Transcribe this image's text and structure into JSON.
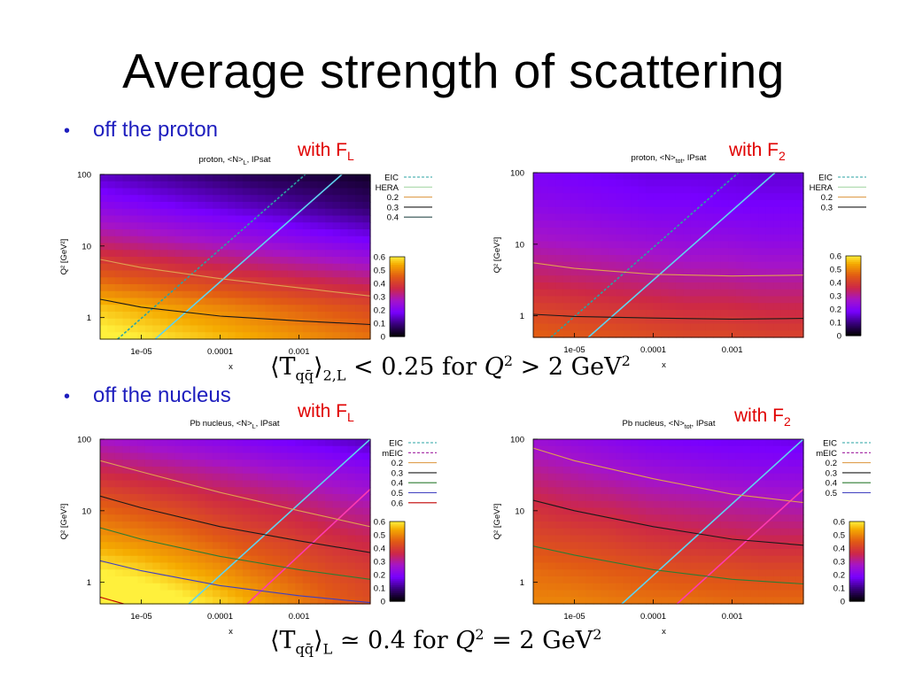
{
  "slide": {
    "title": "Average strength of scattering",
    "bullets": [
      {
        "label": "off the proton"
      },
      {
        "label": "off the nucleus"
      }
    ],
    "formulas": [
      {
        "T": "⟨T",
        "sub1": "qq̄",
        "close": "⟩",
        "sub2": "2,L",
        "rel": " < 0.25 for ",
        "Q": "Q",
        "exp": "2",
        "rhs": " > 2 GeV",
        "exp2": "2"
      },
      {
        "T": "⟨T",
        "sub1": "qq̄",
        "close": "⟩",
        "sub2": "L",
        "rel": " ≃ 0.4 for ",
        "Q": "Q",
        "exp": "2",
        "rhs": " = 2 GeV",
        "exp2": "2"
      }
    ],
    "with_labels": [
      {
        "text": "with F",
        "sub": "L"
      },
      {
        "text": "with F",
        "sub": "2"
      },
      {
        "text": "with F",
        "sub": "L"
      },
      {
        "text": "with F",
        "sub": "2"
      }
    ]
  },
  "chart_data": [
    {
      "type": "heatmap",
      "title": "proton, <N>L, IPsat",
      "title_base": "proton, <N>",
      "title_sub": "L",
      "title_tail": ", IPsat",
      "xlabel": "x",
      "ylabel": "Q² [GeV²]",
      "x_scale": "log",
      "y_scale": "log",
      "xlim": [
        3e-06,
        0.008
      ],
      "ylim": [
        0.5,
        100
      ],
      "xticks": [
        "1e-05",
        "0.0001",
        "0.001"
      ],
      "yticks": [
        "1",
        "10",
        "100"
      ],
      "colorbar_ticks": [
        "0",
        "0.1",
        "0.2",
        "0.3",
        "0.4",
        "0.5",
        "0.6"
      ],
      "colorbar_range": [
        0,
        0.6
      ],
      "grid": [
        [
          0.62,
          0.6,
          0.58,
          0.56,
          0.54,
          0.52,
          0.5,
          0.48
        ],
        [
          0.56,
          0.54,
          0.52,
          0.5,
          0.48,
          0.46,
          0.44,
          0.42
        ],
        [
          0.44,
          0.42,
          0.4,
          0.38,
          0.36,
          0.34,
          0.32,
          0.3
        ],
        [
          0.32,
          0.3,
          0.28,
          0.26,
          0.24,
          0.22,
          0.2,
          0.18
        ],
        [
          0.22,
          0.2,
          0.18,
          0.16,
          0.14,
          0.12,
          0.1,
          0.08
        ],
        [
          0.14,
          0.12,
          0.1,
          0.08,
          0.06,
          0.05,
          0.04,
          0.03
        ]
      ],
      "legend": [
        {
          "name": "EIC",
          "color": "#2aa3a3",
          "dash": true
        },
        {
          "name": "HERA",
          "color": "#a8d8a8",
          "dash": false
        },
        {
          "name": "0.2",
          "color": "#e0a050",
          "dash": false
        },
        {
          "name": "0.3",
          "color": "#1a1a1a",
          "dash": false
        },
        {
          "name": "0.4",
          "color": "#2f4f4f",
          "dash": false
        }
      ],
      "lines": [
        {
          "kind": "kin",
          "color": "#2aa3a3",
          "dash": true,
          "points": [
            [
              5e-06,
              0.5
            ],
            [
              0.0012,
              100
            ]
          ]
        },
        {
          "kind": "kin",
          "color": "#5fd3ef",
          "dash": false,
          "points": [
            [
              1.5e-05,
              0.5
            ],
            [
              0.0035,
              100
            ]
          ]
        },
        {
          "kind": "contour",
          "color": "#e0a050",
          "dash": false,
          "points": [
            [
              3e-06,
              6.5
            ],
            [
              1e-05,
              5.0
            ],
            [
              0.0001,
              3.5
            ],
            [
              0.001,
              2.6
            ],
            [
              0.008,
              2.0
            ]
          ]
        },
        {
          "kind": "contour",
          "color": "#1a1a1a",
          "dash": false,
          "points": [
            [
              3e-06,
              1.8
            ],
            [
              1e-05,
              1.4
            ],
            [
              0.0001,
              1.05
            ],
            [
              0.001,
              0.9
            ],
            [
              0.008,
              0.8
            ]
          ]
        }
      ]
    },
    {
      "type": "heatmap",
      "title": "proton, <N>tot, IPsat",
      "title_base": "proton, <N>",
      "title_sub": "tot",
      "title_tail": ", IPsat",
      "xlabel": "x",
      "ylabel": "Q² [GeV²]",
      "x_scale": "log",
      "y_scale": "log",
      "xlim": [
        3e-06,
        0.008
      ],
      "ylim": [
        0.5,
        100
      ],
      "xticks": [
        "1e-05",
        "0.0001",
        "0.001"
      ],
      "yticks": [
        "1",
        "10",
        "100"
      ],
      "colorbar_ticks": [
        "0",
        "0.1",
        "0.2",
        "0.3",
        "0.4",
        "0.5",
        "0.6"
      ],
      "colorbar_range": [
        0,
        0.6
      ],
      "grid": [
        [
          0.46,
          0.45,
          0.44,
          0.43,
          0.42,
          0.42,
          0.41,
          0.41
        ],
        [
          0.4,
          0.39,
          0.38,
          0.37,
          0.36,
          0.36,
          0.35,
          0.35
        ],
        [
          0.33,
          0.32,
          0.31,
          0.3,
          0.29,
          0.29,
          0.28,
          0.28
        ],
        [
          0.27,
          0.26,
          0.25,
          0.24,
          0.23,
          0.23,
          0.22,
          0.22
        ],
        [
          0.22,
          0.21,
          0.2,
          0.19,
          0.19,
          0.18,
          0.18,
          0.18
        ],
        [
          0.19,
          0.18,
          0.17,
          0.16,
          0.16,
          0.16,
          0.15,
          0.15
        ]
      ],
      "legend": [
        {
          "name": "EIC",
          "color": "#2aa3a3",
          "dash": true
        },
        {
          "name": "HERA",
          "color": "#a8d8a8",
          "dash": false
        },
        {
          "name": "0.2",
          "color": "#e0a050",
          "dash": false
        },
        {
          "name": "0.3",
          "color": "#1a1a1a",
          "dash": false
        }
      ],
      "lines": [
        {
          "kind": "kin",
          "color": "#2aa3a3",
          "dash": true,
          "points": [
            [
              5e-06,
              0.5
            ],
            [
              0.0012,
              100
            ]
          ]
        },
        {
          "kind": "kin",
          "color": "#5fd3ef",
          "dash": false,
          "points": [
            [
              1.5e-05,
              0.5
            ],
            [
              0.0035,
              100
            ]
          ]
        },
        {
          "kind": "contour",
          "color": "#e0a050",
          "dash": false,
          "points": [
            [
              3e-06,
              5.5
            ],
            [
              1e-05,
              4.6
            ],
            [
              0.0001,
              3.8
            ],
            [
              0.001,
              3.6
            ],
            [
              0.008,
              3.7
            ]
          ]
        },
        {
          "kind": "contour",
          "color": "#1a1a1a",
          "dash": false,
          "points": [
            [
              3e-06,
              1.05
            ],
            [
              1e-05,
              0.98
            ],
            [
              0.0001,
              0.93
            ],
            [
              0.001,
              0.9
            ],
            [
              0.008,
              0.92
            ]
          ]
        }
      ]
    },
    {
      "type": "heatmap",
      "title": "Pb nucleus, <N>L, IPsat",
      "title_base": "Pb nucleus, <N>",
      "title_sub": "L",
      "title_tail": ", IPsat",
      "xlabel": "x",
      "ylabel": "Q² [GeV²]",
      "x_scale": "log",
      "y_scale": "log",
      "xlim": [
        3e-06,
        0.008
      ],
      "ylim": [
        0.5,
        100
      ],
      "xticks": [
        "1e-05",
        "0.0001",
        "0.001"
      ],
      "yticks": [
        "1",
        "10",
        "100"
      ],
      "colorbar_ticks": [
        "0",
        "0.1",
        "0.2",
        "0.3",
        "0.4",
        "0.5",
        "0.6"
      ],
      "colorbar_range": [
        0,
        0.6
      ],
      "grid": [
        [
          0.66,
          0.65,
          0.62,
          0.58,
          0.54,
          0.5,
          0.46,
          0.43
        ],
        [
          0.6,
          0.58,
          0.55,
          0.52,
          0.48,
          0.45,
          0.42,
          0.4
        ],
        [
          0.52,
          0.5,
          0.48,
          0.45,
          0.42,
          0.4,
          0.37,
          0.35
        ],
        [
          0.45,
          0.43,
          0.41,
          0.38,
          0.36,
          0.34,
          0.31,
          0.29
        ],
        [
          0.36,
          0.34,
          0.32,
          0.3,
          0.28,
          0.26,
          0.24,
          0.22
        ],
        [
          0.27,
          0.25,
          0.23,
          0.21,
          0.19,
          0.17,
          0.15,
          0.13
        ]
      ],
      "legend": [
        {
          "name": "EIC",
          "color": "#2aa3a3",
          "dash": true
        },
        {
          "name": "mEIC",
          "color": "#a020a0",
          "dash": true
        },
        {
          "name": "0.2",
          "color": "#e0a050",
          "dash": false
        },
        {
          "name": "0.3",
          "color": "#1a1a1a",
          "dash": false
        },
        {
          "name": "0.4",
          "color": "#2e7d32",
          "dash": false
        },
        {
          "name": "0.5",
          "color": "#4040c0",
          "dash": false
        },
        {
          "name": "0.6",
          "color": "#c00000",
          "dash": false
        }
      ],
      "lines": [
        {
          "kind": "kin",
          "color": "#5fd3ef",
          "dash": false,
          "points": [
            [
              4e-05,
              0.5
            ],
            [
              0.008,
              100
            ]
          ]
        },
        {
          "kind": "kin",
          "color": "#ff3ab0",
          "dash": false,
          "points": [
            [
              0.00022,
              0.5
            ],
            [
              0.008,
              20
            ]
          ]
        },
        {
          "kind": "contour",
          "color": "#e0a050",
          "dash": false,
          "points": [
            [
              3e-06,
              50
            ],
            [
              1e-05,
              35
            ],
            [
              0.0001,
              18
            ],
            [
              0.001,
              10
            ],
            [
              0.008,
              6
            ]
          ]
        },
        {
          "kind": "contour",
          "color": "#1a1a1a",
          "dash": false,
          "points": [
            [
              3e-06,
              16
            ],
            [
              1e-05,
              11
            ],
            [
              0.0001,
              6
            ],
            [
              0.001,
              3.8
            ],
            [
              0.008,
              2.6
            ]
          ]
        },
        {
          "kind": "contour",
          "color": "#2e7d32",
          "dash": false,
          "points": [
            [
              3e-06,
              5.8
            ],
            [
              1e-05,
              4.0
            ],
            [
              0.0001,
              2.3
            ],
            [
              0.001,
              1.5
            ],
            [
              0.008,
              1.1
            ]
          ]
        },
        {
          "kind": "contour",
          "color": "#4040c0",
          "dash": false,
          "points": [
            [
              3e-06,
              2.0
            ],
            [
              1e-05,
              1.45
            ],
            [
              0.0001,
              0.9
            ],
            [
              0.001,
              0.65
            ],
            [
              0.008,
              0.52
            ]
          ]
        },
        {
          "kind": "contour",
          "color": "#c00000",
          "dash": false,
          "points": [
            [
              3e-06,
              0.62
            ],
            [
              6e-06,
              0.5
            ]
          ]
        }
      ]
    },
    {
      "type": "heatmap",
      "title": "Pb nucleus, <N>tot, IPsat",
      "title_base": "Pb nucleus, <N>",
      "title_sub": "tot",
      "title_tail": ", IPsat",
      "xlabel": "x",
      "ylabel": "Q² [GeV²]",
      "x_scale": "log",
      "y_scale": "log",
      "xlim": [
        3e-06,
        0.008
      ],
      "ylim": [
        0.5,
        100
      ],
      "xticks": [
        "1e-05",
        "0.0001",
        "0.001"
      ],
      "yticks": [
        "1",
        "10",
        "100"
      ],
      "colorbar_ticks": [
        "0",
        "0.1",
        "0.2",
        "0.3",
        "0.4",
        "0.5",
        "0.6"
      ],
      "colorbar_range": [
        0,
        0.6
      ],
      "grid": [
        [
          0.5,
          0.5,
          0.49,
          0.48,
          0.48,
          0.47,
          0.47,
          0.47
        ],
        [
          0.47,
          0.46,
          0.45,
          0.44,
          0.43,
          0.43,
          0.42,
          0.42
        ],
        [
          0.42,
          0.41,
          0.4,
          0.38,
          0.37,
          0.36,
          0.35,
          0.35
        ],
        [
          0.37,
          0.35,
          0.34,
          0.32,
          0.31,
          0.3,
          0.29,
          0.28
        ],
        [
          0.31,
          0.29,
          0.27,
          0.25,
          0.24,
          0.23,
          0.22,
          0.22
        ],
        [
          0.25,
          0.23,
          0.21,
          0.19,
          0.18,
          0.17,
          0.17,
          0.16
        ]
      ],
      "legend": [
        {
          "name": "EIC",
          "color": "#2aa3a3",
          "dash": true
        },
        {
          "name": "mEIC",
          "color": "#a020a0",
          "dash": true
        },
        {
          "name": "0.2",
          "color": "#e0a050",
          "dash": false
        },
        {
          "name": "0.3",
          "color": "#1a1a1a",
          "dash": false
        },
        {
          "name": "0.4",
          "color": "#2e7d32",
          "dash": false
        },
        {
          "name": "0.5",
          "color": "#4040c0",
          "dash": false
        }
      ],
      "lines": [
        {
          "kind": "kin",
          "color": "#5fd3ef",
          "dash": false,
          "points": [
            [
              4e-05,
              0.5
            ],
            [
              0.008,
              100
            ]
          ]
        },
        {
          "kind": "kin",
          "color": "#ff3ab0",
          "dash": false,
          "points": [
            [
              0.0002,
              0.5
            ],
            [
              0.008,
              20
            ]
          ]
        },
        {
          "kind": "contour",
          "color": "#e0a050",
          "dash": false,
          "points": [
            [
              3e-06,
              75
            ],
            [
              1e-05,
              50
            ],
            [
              0.0001,
              28
            ],
            [
              0.001,
              17
            ],
            [
              0.008,
              13
            ]
          ]
        },
        {
          "kind": "contour",
          "color": "#1a1a1a",
          "dash": false,
          "points": [
            [
              3e-06,
              14
            ],
            [
              1e-05,
              10
            ],
            [
              0.0001,
              6
            ],
            [
              0.001,
              4
            ],
            [
              0.008,
              3.3
            ]
          ]
        },
        {
          "kind": "contour",
          "color": "#2e7d32",
          "dash": false,
          "points": [
            [
              3e-06,
              3.2
            ],
            [
              1e-05,
              2.4
            ],
            [
              0.0001,
              1.5
            ],
            [
              0.001,
              1.1
            ],
            [
              0.008,
              0.95
            ]
          ]
        }
      ]
    }
  ]
}
